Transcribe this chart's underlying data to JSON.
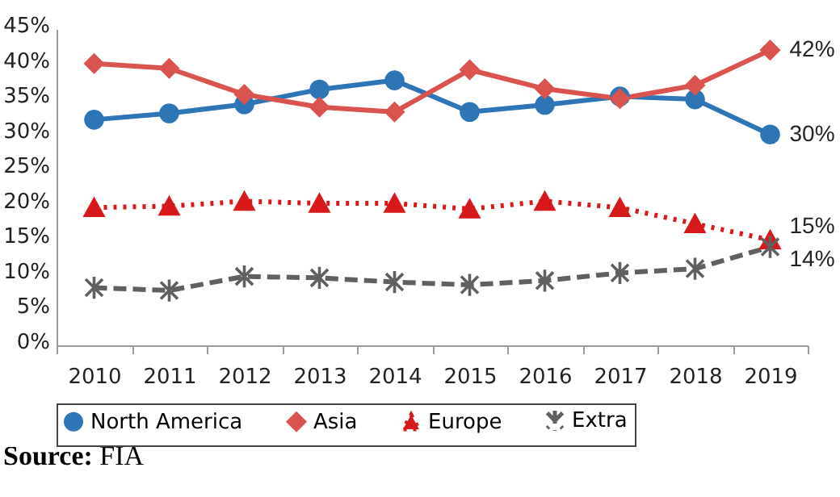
{
  "chart_data": {
    "type": "line",
    "categories": [
      "2010",
      "2011",
      "2012",
      "2013",
      "2014",
      "2015",
      "2016",
      "2017",
      "2018",
      "2019"
    ],
    "ylim": [
      0,
      45
    ],
    "yticks": [
      {
        "value": 0,
        "label": "0%"
      },
      {
        "value": 5,
        "label": "5%"
      },
      {
        "value": 10,
        "label": "10%"
      },
      {
        "value": 15,
        "label": "15%"
      },
      {
        "value": 20,
        "label": "20%"
      },
      {
        "value": 25,
        "label": "25%"
      },
      {
        "value": 30,
        "label": "30%"
      },
      {
        "value": 35,
        "label": "35%"
      },
      {
        "value": 40,
        "label": "40%"
      },
      {
        "value": 45,
        "label": "45%"
      }
    ],
    "grid": false,
    "legend": "bottom",
    "annotations": [
      "Source: FIA"
    ],
    "series": [
      {
        "name": "North America",
        "color": "#2e75b6",
        "marker": "circle",
        "line_style": "solid",
        "values": [
          32.1,
          33.0,
          34.3,
          36.4,
          37.7,
          33.2,
          34.2,
          35.4,
          35.0,
          30.0
        ],
        "value_labels": [
          null,
          null,
          null,
          null,
          null,
          null,
          null,
          null,
          null,
          "30%"
        ]
      },
      {
        "name": "Asia",
        "color": "#d9534f",
        "marker": "diamond",
        "line_style": "solid",
        "values": [
          40.1,
          39.4,
          35.7,
          33.9,
          33.2,
          39.2,
          36.5,
          35.1,
          37.0,
          42.0
        ],
        "value_labels": [
          null,
          null,
          null,
          null,
          null,
          null,
          null,
          null,
          null,
          "42%"
        ]
      },
      {
        "name": "Europe",
        "color": "#d7191c",
        "marker": "triangle",
        "line_style": "dotted",
        "values": [
          19.6,
          19.8,
          20.5,
          20.2,
          20.2,
          19.4,
          20.5,
          19.6,
          17.3,
          15.0
        ],
        "value_labels": [
          null,
          null,
          null,
          null,
          null,
          null,
          null,
          null,
          null,
          "15%"
        ]
      },
      {
        "name": "Extra",
        "color": "#606060",
        "marker": "cross",
        "line_style": "dashed",
        "values": [
          8.2,
          7.8,
          9.8,
          9.6,
          9.0,
          8.6,
          9.2,
          10.3,
          10.9,
          14.0
        ],
        "value_labels": [
          null,
          null,
          null,
          null,
          null,
          null,
          null,
          null,
          null,
          "14%"
        ]
      }
    ]
  }
}
